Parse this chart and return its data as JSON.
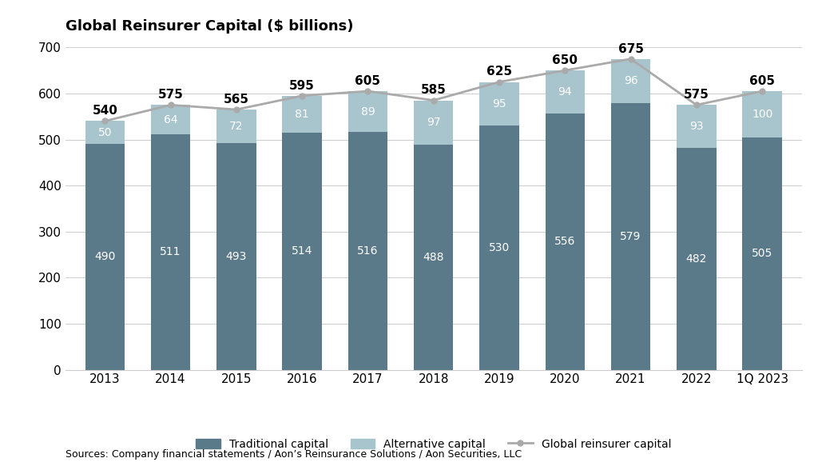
{
  "title": "Global Reinsurer Capital ($ billions)",
  "years": [
    "2013",
    "2014",
    "2015",
    "2016",
    "2017",
    "2018",
    "2019",
    "2020",
    "2021",
    "2022",
    "1Q 2023"
  ],
  "traditional": [
    490,
    511,
    493,
    514,
    516,
    488,
    530,
    556,
    579,
    482,
    505
  ],
  "alternative": [
    50,
    64,
    72,
    81,
    89,
    97,
    95,
    94,
    96,
    93,
    100
  ],
  "total": [
    540,
    575,
    565,
    595,
    605,
    585,
    625,
    650,
    675,
    575,
    605
  ],
  "traditional_color": "#5a7a8a",
  "alternative_color": "#a8c4cc",
  "line_color": "#aaaaaa",
  "ylim": [
    0,
    700
  ],
  "yticks": [
    0,
    100,
    200,
    300,
    400,
    500,
    600,
    700
  ],
  "source_text": "Sources: Company financial statements / Aon’s Reinsurance Solutions / Aon Securities, LLC",
  "background_color": "#ffffff",
  "legend_labels": [
    "Traditional capital",
    "Alternative capital",
    "Global reinsurer capital"
  ]
}
